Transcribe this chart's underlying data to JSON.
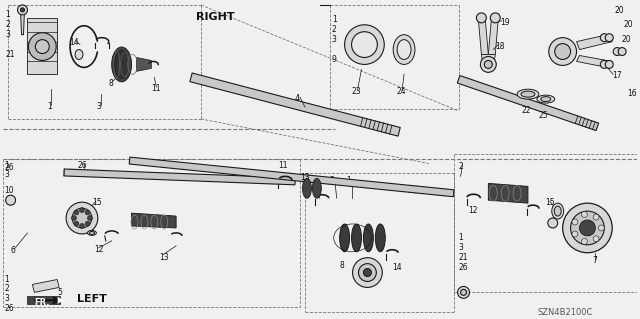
{
  "bg_color": "#f0f0f0",
  "fg_color": "#1a1a1a",
  "part_number_code": "SZN4B2100C",
  "label_RIGHT": "RIGHT",
  "label_LEFT": "LEFT",
  "label_FR": "FR.",
  "figsize": [
    6.4,
    3.19
  ],
  "dpi": 100,
  "shaft_fill": "#c8c8c8",
  "part_fill": "#d8d8d8",
  "box_fill": "#e8e8e8",
  "dark_fill": "#444444",
  "mid_fill": "#888888"
}
